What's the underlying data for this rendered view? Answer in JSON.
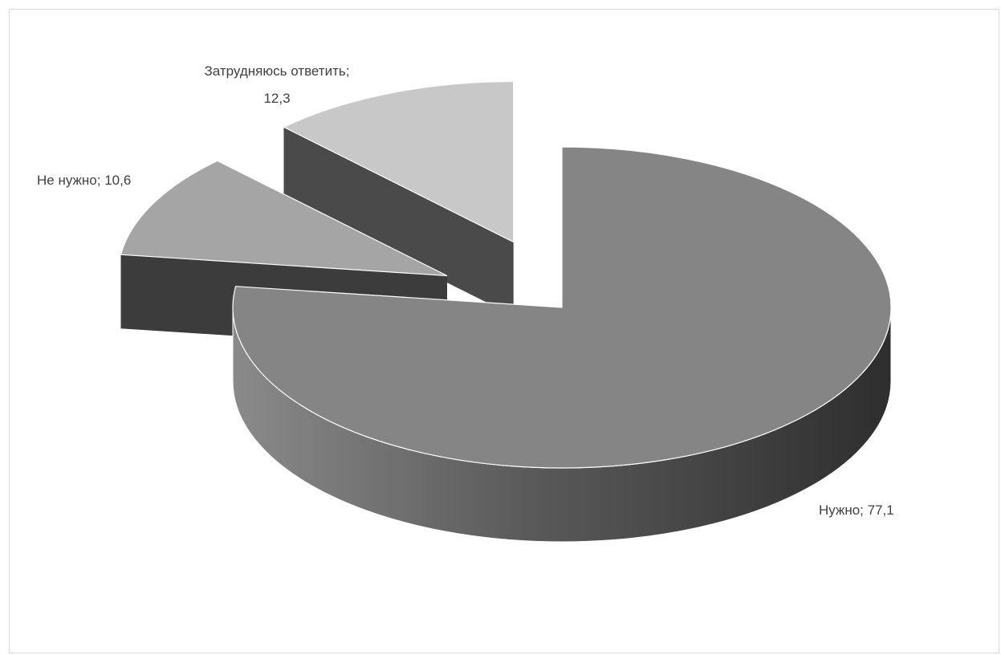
{
  "chart_data": {
    "type": "pie",
    "style": "3d-exploded",
    "categories": [
      "Нужно",
      "Не нужно",
      "Затрудняюсь ответить"
    ],
    "values": [
      77.1,
      10.6,
      12.3
    ],
    "data_labels": [
      {
        "line1": "Нужно; 77,1"
      },
      {
        "line1": "Не нужно; 10,6"
      },
      {
        "line1": "Затрудняюсь ответить;",
        "line2": "12,3"
      }
    ],
    "colors": [
      "#858585",
      "#a5a5a5",
      "#c8c8c8"
    ],
    "side_colors": [
      "#555555",
      "#3c3c3c",
      "#4a4a4a"
    ],
    "legend": "none"
  }
}
